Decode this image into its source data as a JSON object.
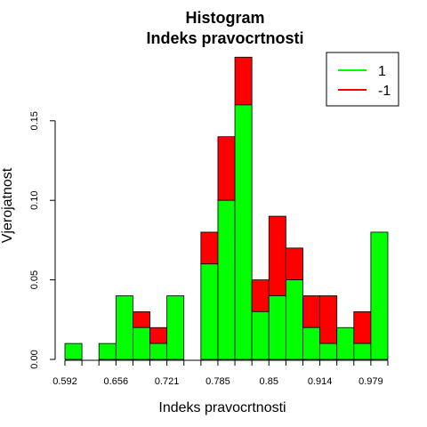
{
  "chart_data": {
    "type": "bar",
    "title": "Histogram",
    "subtitle": "Indeks pravocrtnosti",
    "xlabel": "Indeks pravocrtnosti",
    "ylabel": "Vjerojatnost",
    "ylim": [
      0,
      0.19
    ],
    "y_ticks": [
      0.0,
      0.05,
      0.1,
      0.15
    ],
    "y_tick_labels": [
      "0.00",
      "0.05",
      "0.10",
      "0.15"
    ],
    "x_tick_labels": [
      "0.592",
      "0.656",
      "0.721",
      "0.785",
      "0.85",
      "0.914",
      "0.979"
    ],
    "bin_count": 19,
    "stacked": true,
    "series": [
      {
        "name": "1",
        "color": "#00ff00",
        "values": [
          0.01,
          0.0,
          0.01,
          0.04,
          0.02,
          0.01,
          0.04,
          0.0,
          0.06,
          0.1,
          0.16,
          0.03,
          0.04,
          0.05,
          0.02,
          0.01,
          0.02,
          0.01,
          0.08
        ]
      },
      {
        "name": "-1",
        "color": "#ff0000",
        "values": [
          0.0,
          0.0,
          0.0,
          0.0,
          0.01,
          0.01,
          0.0,
          0.0,
          0.02,
          0.04,
          0.03,
          0.02,
          0.05,
          0.02,
          0.02,
          0.03,
          0.0,
          0.02,
          0.0
        ]
      }
    ],
    "legend": {
      "placement": "top-right",
      "entries": [
        {
          "label": "1",
          "color": "#00ff00"
        },
        {
          "label": "-1",
          "color": "#ff0000"
        }
      ]
    }
  }
}
